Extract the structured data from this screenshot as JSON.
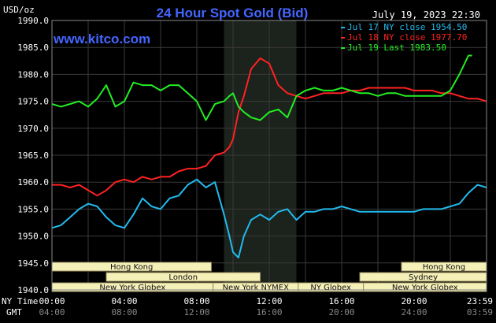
{
  "chart_data": {
    "type": "line",
    "title": "24 Hour Spot Gold (Bid)",
    "site": "www.kitco.com",
    "timestamp": "July 19, 2023 22:30",
    "ylabel": "USD/oz",
    "ylim": [
      1940,
      1990
    ],
    "yticks": [
      "1990.0",
      "1985.0",
      "1980.0",
      "1975.0",
      "1970.0",
      "1965.0",
      "1960.0",
      "1955.0",
      "1950.0",
      "1945.0",
      "1940.0"
    ],
    "x_row_label_1": "NY Time",
    "x_row_label_2": "GMT",
    "xticks_ny": [
      "00:00",
      "04:00",
      "08:00",
      "12:00",
      "16:00",
      "20:00",
      "23:59"
    ],
    "xticks_gmt": [
      "04:00",
      "08:00",
      "12:00",
      "16:00",
      "20:00",
      "24:00",
      "03:59"
    ],
    "grid": true,
    "legend_placement": "top-right",
    "highlight_window": [
      9.5,
      13.5
    ],
    "series": [
      {
        "name": "Jul 17 NY close 1954.50",
        "color": "#22bbee",
        "x": [
          0,
          0.5,
          1,
          1.5,
          2,
          2.5,
          3,
          3.5,
          4,
          4.5,
          5,
          5.5,
          6,
          6.5,
          7,
          7.5,
          8,
          8.5,
          9,
          9.5,
          9.8,
          10,
          10.3,
          10.6,
          11,
          11.5,
          12,
          12.5,
          13,
          13.5,
          14,
          14.5,
          15,
          15.5,
          16,
          16.5,
          17,
          17.5,
          18,
          18.5,
          19,
          19.5,
          20,
          20.5,
          21,
          21.5,
          22,
          22.5,
          23,
          23.5,
          23.99
        ],
        "values": [
          1951.5,
          1952,
          1953.5,
          1955,
          1956,
          1955.5,
          1953.5,
          1952,
          1951.5,
          1954,
          1957,
          1955.5,
          1955,
          1957,
          1957.5,
          1959.5,
          1960.5,
          1959,
          1960,
          1954,
          1950,
          1947,
          1946,
          1950,
          1953,
          1954,
          1953,
          1954.5,
          1955,
          1953,
          1954.5,
          1954.5,
          1955,
          1955,
          1955.5,
          1955,
          1954.5,
          1954.5,
          1954.5,
          1954.5,
          1954.5,
          1954.5,
          1954.5,
          1955,
          1955,
          1955,
          1955.5,
          1956,
          1958,
          1959.5,
          1959
        ]
      },
      {
        "name": "Jul 18 NY close 1977.70",
        "color": "#ff2222",
        "x": [
          0,
          0.5,
          1,
          1.5,
          2,
          2.5,
          3,
          3.5,
          4,
          4.5,
          5,
          5.5,
          6,
          6.5,
          7,
          7.5,
          8,
          8.5,
          9,
          9.5,
          9.8,
          10,
          10.3,
          10.6,
          11,
          11.5,
          12,
          12.5,
          13,
          13.5,
          14,
          14.5,
          15,
          15.5,
          16,
          16.5,
          17,
          17.5,
          18,
          18.5,
          19,
          19.5,
          20,
          20.5,
          21,
          21.5,
          22,
          22.5,
          23,
          23.5,
          23.99
        ],
        "values": [
          1959.5,
          1959.5,
          1959,
          1959.5,
          1958.5,
          1957.5,
          1958.5,
          1960,
          1960.5,
          1960,
          1961,
          1960.5,
          1961,
          1961,
          1962,
          1962.5,
          1962.5,
          1963,
          1965,
          1965.5,
          1966.5,
          1968,
          1973,
          1976,
          1981,
          1983,
          1982,
          1978,
          1976.5,
          1976,
          1975.5,
          1976,
          1976.5,
          1976.5,
          1976.5,
          1977,
          1977,
          1977.5,
          1977.5,
          1977.5,
          1977.5,
          1977.5,
          1977,
          1977,
          1977,
          1976.5,
          1976.5,
          1976,
          1975.5,
          1975.5,
          1975
        ]
      },
      {
        "name": "Jul 19 Last 1983.50",
        "color": "#22ee22",
        "x": [
          0,
          0.5,
          1,
          1.5,
          2,
          2.5,
          3,
          3.5,
          4,
          4.5,
          5,
          5.5,
          6,
          6.5,
          7,
          7.5,
          8,
          8.5,
          9,
          9.5,
          9.8,
          10,
          10.3,
          10.6,
          11,
          11.5,
          12,
          12.5,
          13,
          13.5,
          14,
          14.5,
          15,
          15.5,
          16,
          16.5,
          17,
          17.5,
          18,
          18.5,
          19,
          19.5,
          20,
          20.5,
          21,
          21.5,
          22,
          22.5,
          23,
          23.2
        ],
        "values": [
          1974.5,
          1974,
          1974.5,
          1975,
          1974,
          1975.5,
          1978,
          1974,
          1975,
          1978.5,
          1978,
          1978,
          1977,
          1978,
          1978,
          1976.5,
          1975,
          1971.5,
          1974.5,
          1975,
          1976,
          1976.5,
          1974,
          1973,
          1972,
          1971.5,
          1973,
          1973.5,
          1972,
          1976,
          1977,
          1977.5,
          1977,
          1977,
          1977.5,
          1977,
          1976.5,
          1976.5,
          1976,
          1976.5,
          1976.5,
          1976,
          1976,
          1976,
          1976,
          1976,
          1977,
          1980,
          1983.5,
          1983.5
        ]
      }
    ],
    "sessions": [
      {
        "label": "Hong Kong",
        "start": -2,
        "end": 8.8,
        "row": 0
      },
      {
        "label": "Hong Kong",
        "start": 19.3,
        "end": 24,
        "row": 0
      },
      {
        "label": "London",
        "start": 3,
        "end": 11.5,
        "row": 1
      },
      {
        "label": "Sydney",
        "start": 17,
        "end": 24,
        "row": 1
      },
      {
        "label": "New York Globex",
        "start": 0,
        "end": 8.9,
        "row": 2
      },
      {
        "label": "New York NYMEX",
        "start": 8.9,
        "end": 13.6,
        "row": 2
      },
      {
        "label": "NY Globex",
        "start": 13.6,
        "end": 17.2,
        "row": 2
      },
      {
        "label": "New York Globex",
        "start": 17.2,
        "end": 24,
        "row": 2
      }
    ]
  }
}
